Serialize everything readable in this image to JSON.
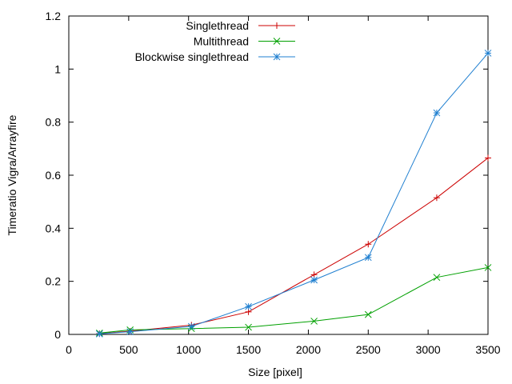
{
  "chart_data": {
    "type": "line",
    "title": "",
    "xlabel": "Size [pixel]",
    "ylabel": "Timeratio Vigra/Arrayfire",
    "xlim": [
      0,
      3500
    ],
    "ylim": [
      0,
      1.2
    ],
    "xticks": [
      0,
      500,
      1000,
      1500,
      2000,
      2500,
      3000,
      3500
    ],
    "xtick_labels": [
      "0",
      "500",
      "1000",
      "1500",
      "2000",
      "2500",
      "3000",
      "3500"
    ],
    "yticks": [
      0,
      0.2,
      0.4,
      0.6,
      0.8,
      1.0,
      1.2
    ],
    "ytick_labels": [
      "0",
      "0.2",
      "0.4",
      "0.6",
      "0.8",
      "1",
      "1.2"
    ],
    "grid": false,
    "legend_position": "top-center",
    "series": [
      {
        "name": "Singlethread",
        "color": "#cc0000",
        "marker": "plus",
        "x": [
          256,
          512,
          1024,
          1500,
          2048,
          2500,
          3072,
          3500
        ],
        "y": [
          0.003,
          0.012,
          0.035,
          0.085,
          0.225,
          0.34,
          0.515,
          0.665
        ]
      },
      {
        "name": "Multithread",
        "color": "#00a000",
        "marker": "cross",
        "x": [
          256,
          512,
          1024,
          1500,
          2048,
          2500,
          3072,
          3500
        ],
        "y": [
          0.005,
          0.017,
          0.022,
          0.027,
          0.05,
          0.075,
          0.215,
          0.252
        ]
      },
      {
        "name": "Blockwise singlethread",
        "color": "#1f7fd0",
        "marker": "star",
        "x": [
          256,
          512,
          1024,
          1500,
          2048,
          2500,
          3072,
          3500
        ],
        "y": [
          0.002,
          0.01,
          0.03,
          0.105,
          0.205,
          0.29,
          0.835,
          1.06
        ]
      }
    ]
  }
}
